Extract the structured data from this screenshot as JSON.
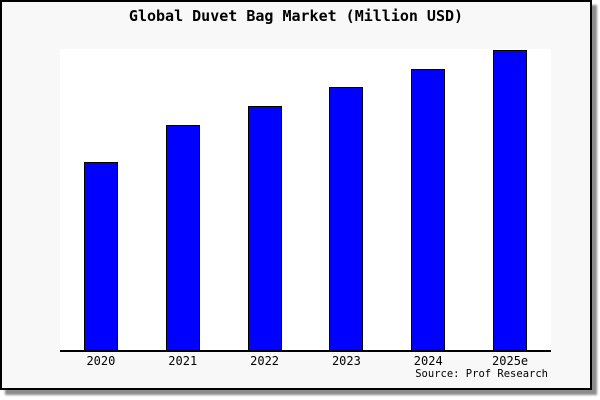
{
  "window": {
    "background_color": "#f8f8f8",
    "border_color": "#000000",
    "plot_background_color": "#ffffff"
  },
  "chart_data": {
    "type": "bar",
    "title": "Global Duvet Bag Market (Million USD)",
    "categories": [
      "2020",
      "2021",
      "2022",
      "2023",
      "2024",
      "2025e"
    ],
    "values": [
      188,
      225,
      244,
      263,
      281,
      300
    ],
    "xlabel": "",
    "ylabel": "",
    "ylim": [
      0,
      301
    ],
    "grid": false,
    "legend": false,
    "y_axis_shown": false,
    "value_labels_shown": false,
    "bar_color": "#0000ff",
    "bar_border_color": "#000000",
    "note": "No y-axis ticks or value labels are visible in the chart; values are relative units estimated from bar pixel heights (tallest bar = 300).",
    "source": "Source: Prof Research"
  }
}
